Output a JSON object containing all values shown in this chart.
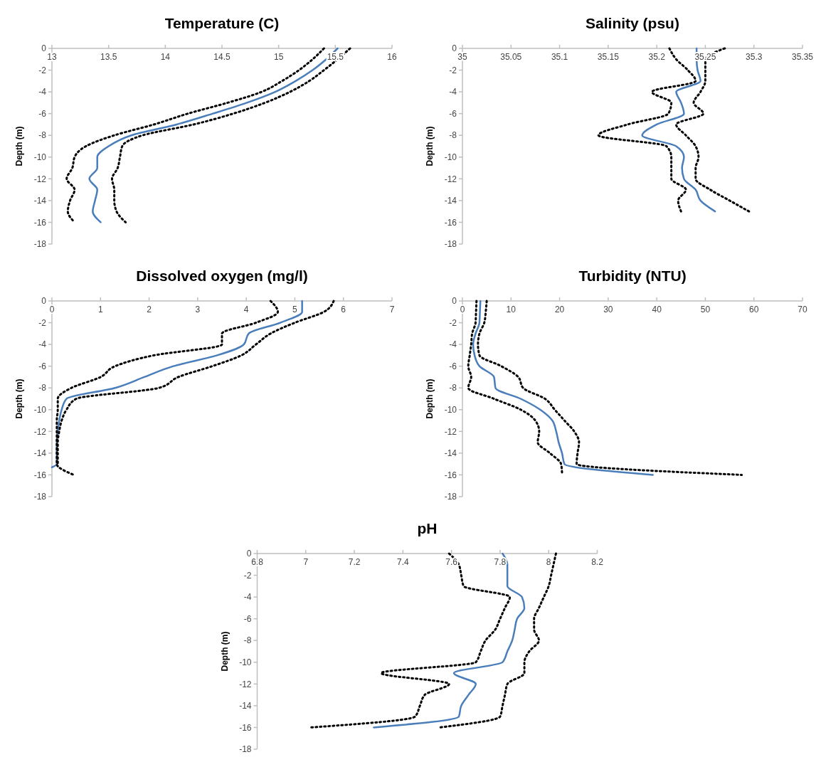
{
  "chart_data": [
    {
      "type": "line",
      "title": "Temperature (C)",
      "ylabel": "Depth (m)",
      "xlim": [
        13,
        16
      ],
      "xticks": [
        13,
        13.5,
        14,
        14.5,
        15,
        15.5,
        16
      ],
      "ylim": [
        -18,
        0
      ],
      "yticks": [
        0,
        -2,
        -4,
        -6,
        -8,
        -10,
        -12,
        -14,
        -16,
        -18
      ],
      "grid": false,
      "marker": "none",
      "series": [
        {
          "color": "#4a7ebb",
          "line_style": "solid",
          "x": [
            15.52,
            15.42,
            15.3,
            15.15,
            14.97,
            14.72,
            14.42,
            14.1,
            13.7,
            13.5,
            13.4,
            13.4,
            13.33,
            13.4,
            13.38,
            13.36,
            13.43
          ],
          "values": [
            0,
            -1,
            -2,
            -3,
            -4,
            -5,
            -6,
            -7,
            -8,
            -9,
            -10,
            -11,
            -12,
            -13,
            -14,
            -15,
            -16
          ]
        },
        {
          "color": "#000000",
          "line_style": "dotted",
          "x": [
            15.4,
            15.3,
            15.18,
            15.03,
            14.85,
            14.55,
            14.2,
            13.9,
            13.55,
            13.3,
            13.2,
            13.18,
            13.13,
            13.2,
            13.16,
            13.14,
            13.2
          ],
          "values": [
            0,
            -1,
            -2,
            -3,
            -4,
            -5,
            -6,
            -7,
            -8,
            -9,
            -10,
            -11,
            -12,
            -13,
            -14,
            -15,
            -16
          ]
        },
        {
          "color": "#000000",
          "line_style": "dotted",
          "x": [
            15.63,
            15.52,
            15.4,
            15.27,
            15.1,
            14.88,
            14.6,
            14.25,
            13.8,
            13.62,
            13.6,
            13.58,
            13.53,
            13.55,
            13.55,
            13.57,
            13.65
          ],
          "values": [
            0,
            -1,
            -2,
            -3,
            -4,
            -5,
            -6,
            -7,
            -8,
            -9,
            -10,
            -11,
            -12,
            -13,
            -14,
            -15,
            -16
          ]
        }
      ]
    },
    {
      "type": "line",
      "title": "Salinity (psu)",
      "ylabel": "Depth (m)",
      "xlim": [
        35,
        35.35
      ],
      "xticks": [
        35,
        35.05,
        35.1,
        35.15,
        35.2,
        35.25,
        35.3,
        35.35
      ],
      "ylim": [
        -18,
        0
      ],
      "yticks": [
        0,
        -2,
        -4,
        -6,
        -8,
        -10,
        -12,
        -14,
        -16,
        -18
      ],
      "grid": false,
      "marker": "none",
      "series": [
        {
          "color": "#4a7ebb",
          "line_style": "solid",
          "x": [
            35.241,
            35.241,
            35.242,
            35.245,
            35.22,
            35.225,
            35.228,
            35.2,
            35.185,
            35.22,
            35.228,
            35.226,
            35.228,
            35.24,
            35.245,
            35.26
          ],
          "values": [
            0,
            -1,
            -2,
            -3,
            -4,
            -5,
            -6,
            -7,
            -8,
            -9,
            -10,
            -11,
            -12,
            -13,
            -14,
            -15
          ]
        },
        {
          "color": "#000000",
          "line_style": "dotted",
          "x": [
            35.213,
            35.22,
            35.232,
            35.24,
            35.195,
            35.215,
            35.212,
            35.17,
            35.14,
            35.21,
            35.215,
            35.215,
            35.215,
            35.23,
            35.222,
            35.225
          ],
          "values": [
            0,
            -1,
            -2,
            -3,
            -4,
            -5,
            -6,
            -7,
            -8,
            -9,
            -10,
            -11,
            -12,
            -13,
            -14,
            -15
          ]
        },
        {
          "color": "#000000",
          "line_style": "dotted",
          "x": [
            35.27,
            35.25,
            35.25,
            35.25,
            35.245,
            35.238,
            35.248,
            35.22,
            35.23,
            35.24,
            35.243,
            35.24,
            35.24,
            35.255,
            35.275,
            35.295
          ],
          "values": [
            0,
            -1,
            -2,
            -3,
            -4,
            -5,
            -6,
            -7,
            -8,
            -9,
            -10,
            -11,
            -12,
            -13,
            -14,
            -15
          ]
        }
      ]
    },
    {
      "type": "line",
      "title": "Dissolved oxygen (mg/l)",
      "ylabel": "Depth (m)",
      "xlim": [
        0,
        7
      ],
      "xticks": [
        0,
        1,
        2,
        3,
        4,
        5,
        6,
        7
      ],
      "ylim": [
        -18,
        0
      ],
      "yticks": [
        0,
        -2,
        -4,
        -6,
        -8,
        -10,
        -12,
        -14,
        -16,
        -18
      ],
      "grid": false,
      "marker": "none",
      "series": [
        {
          "color": "#4a7ebb",
          "line_style": "solid",
          "x": [
            5.15,
            5.15,
            4.7,
            4.05,
            3.95,
            3.4,
            2.5,
            1.9,
            1.3,
            0.3,
            0.2,
            0.15,
            0.12,
            0.1,
            0.1,
            0.1,
            0
          ],
          "values": [
            0,
            -1,
            -2,
            -3,
            -4,
            -5,
            -6,
            -7,
            -8,
            -9,
            -10,
            -11,
            -12,
            -13,
            -14,
            -15,
            -15.3
          ]
        },
        {
          "color": "#000000",
          "line_style": "dotted",
          "x": [
            4.5,
            4.65,
            4.2,
            3.5,
            3.5,
            2.1,
            1.3,
            1.0,
            0.4,
            0.12,
            0.12,
            0.1,
            0.1,
            0.1,
            0.1,
            0.1,
            0.45
          ],
          "values": [
            0,
            -1,
            -2,
            -3,
            -4,
            -5,
            -6,
            -7,
            -8,
            -9,
            -10,
            -11,
            -12,
            -13,
            -14,
            -15,
            -16
          ]
        },
        {
          "color": "#000000",
          "line_style": "dotted",
          "x": [
            5.8,
            5.6,
            5.0,
            4.5,
            4.2,
            3.9,
            3.3,
            2.6,
            2.2,
            0.5,
            0.3,
            0.2,
            0.15,
            0.12,
            0.12,
            0.12
          ],
          "values": [
            0,
            -1,
            -2,
            -3,
            -4,
            -5,
            -6,
            -7,
            -8,
            -9,
            -10,
            -11,
            -12,
            -13,
            -14,
            -15
          ]
        }
      ]
    },
    {
      "type": "line",
      "title": "Turbidity (NTU)",
      "ylabel": "Depth (m)",
      "xlim": [
        0,
        70
      ],
      "xticks": [
        0,
        10,
        20,
        30,
        40,
        50,
        60,
        70
      ],
      "ylim": [
        -18,
        0
      ],
      "yticks": [
        0,
        -2,
        -4,
        -6,
        -8,
        -10,
        -12,
        -14,
        -16,
        -18
      ],
      "grid": false,
      "marker": "none",
      "series": [
        {
          "color": "#4a7ebb",
          "line_style": "solid",
          "x": [
            3.7,
            3.6,
            3.5,
            2.7,
            2.2,
            2.5,
            3.5,
            6.5,
            6.8,
            12,
            16,
            18.5,
            19.3,
            19.8,
            20.5,
            21,
            39.2
          ],
          "values": [
            0,
            -1,
            -2,
            -3,
            -4,
            -5,
            -6,
            -7,
            -8,
            -9,
            -10,
            -11,
            -12,
            -13,
            -14,
            -15,
            -16
          ]
        },
        {
          "color": "#000000",
          "line_style": "dotted",
          "x": [
            2.9,
            2.8,
            2.7,
            2,
            1.8,
            1.5,
            1.2,
            1.8,
            1.2,
            6.5,
            12,
            15,
            15.8,
            15.5,
            18,
            20.3,
            20.5
          ],
          "values": [
            0,
            -1,
            -2,
            -3,
            -4,
            -5,
            -6,
            -7,
            -8,
            -9,
            -10,
            -11,
            -12,
            -13,
            -14,
            -15,
            -15.8
          ]
        },
        {
          "color": "#000000",
          "line_style": "dotted",
          "x": [
            5,
            4.8,
            4.5,
            3.5,
            3.2,
            3.5,
            8,
            11.5,
            12.5,
            17,
            19,
            21,
            23,
            24,
            23.7,
            23.5,
            57.5
          ],
          "values": [
            0,
            -1,
            -2,
            -3,
            -4,
            -5,
            -6,
            -7,
            -8,
            -9,
            -10,
            -11,
            -12,
            -13,
            -14,
            -15,
            -16
          ]
        }
      ]
    },
    {
      "type": "line",
      "title": "pH",
      "ylabel": "Depth (m)",
      "xlim": [
        6.8,
        8.2
      ],
      "xticks": [
        6.8,
        7,
        7.2,
        7.4,
        7.6,
        7.8,
        8,
        8.2
      ],
      "ylim": [
        -18,
        0
      ],
      "yticks": [
        0,
        -2,
        -4,
        -6,
        -8,
        -10,
        -12,
        -14,
        -16,
        -18
      ],
      "grid": false,
      "marker": "none",
      "series": [
        {
          "color": "#4a7ebb",
          "line_style": "solid",
          "x": [
            7.81,
            7.83,
            7.83,
            7.83,
            7.89,
            7.9,
            7.87,
            7.86,
            7.85,
            7.83,
            7.81,
            7.61,
            7.7,
            7.67,
            7.64,
            7.63,
            7.28
          ],
          "values": [
            0,
            -1,
            -2,
            -3,
            -4,
            -5,
            -6,
            -7,
            -8,
            -9,
            -10,
            -11,
            -12,
            -13,
            -14,
            -15,
            -16
          ]
        },
        {
          "color": "#000000",
          "line_style": "dotted",
          "x": [
            7.59,
            7.63,
            7.64,
            7.65,
            7.84,
            7.82,
            7.8,
            7.78,
            7.74,
            7.72,
            7.7,
            7.31,
            7.59,
            7.49,
            7.47,
            7.45,
            7.02
          ],
          "values": [
            0,
            -1,
            -2,
            -3,
            -4,
            -5,
            -6,
            -7,
            -8,
            -9,
            -10,
            -11,
            -12,
            -13,
            -14,
            -15,
            -16
          ]
        },
        {
          "color": "#000000",
          "line_style": "dotted",
          "x": [
            8.03,
            8.02,
            8.01,
            8.0,
            7.98,
            7.96,
            7.94,
            7.94,
            7.96,
            7.92,
            7.9,
            7.9,
            7.83,
            7.82,
            7.81,
            7.8,
            7.55
          ],
          "values": [
            0,
            -1,
            -2,
            -3,
            -4,
            -5,
            -6,
            -7,
            -8,
            -9,
            -10,
            -11,
            -12,
            -13,
            -14,
            -15,
            -16
          ]
        }
      ]
    }
  ]
}
